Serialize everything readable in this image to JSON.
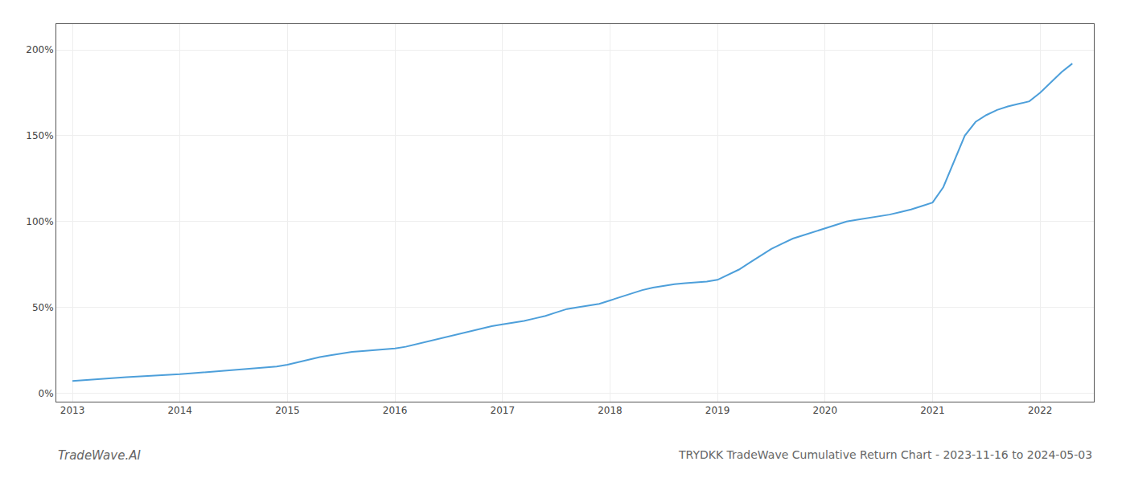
{
  "chart_data": {
    "type": "line",
    "title": "TRYDKK TradeWave Cumulative Return Chart - 2023-11-16 to 2024-05-03",
    "annotations": [
      "TradeWave.AI"
    ],
    "color": "#4d9fda",
    "grid": true,
    "xlim": [
      2012.85,
      2022.5
    ],
    "ylim": [
      -5,
      215
    ],
    "xticks": [
      2013,
      2014,
      2015,
      2016,
      2017,
      2018,
      2019,
      2020,
      2021,
      2022
    ],
    "yticks": [
      {
        "value": 0,
        "label": "0%"
      },
      {
        "value": 50,
        "label": "50%"
      },
      {
        "value": 100,
        "label": "100%"
      },
      {
        "value": 150,
        "label": "150%"
      },
      {
        "value": 200,
        "label": "200%"
      }
    ],
    "x": [
      2013.0,
      2013.1,
      2013.2,
      2013.3,
      2013.4,
      2013.5,
      2013.6,
      2013.7,
      2013.8,
      2013.9,
      2014.0,
      2014.1,
      2014.2,
      2014.3,
      2014.4,
      2014.5,
      2014.6,
      2014.7,
      2014.8,
      2014.9,
      2015.0,
      2015.1,
      2015.2,
      2015.3,
      2015.4,
      2015.5,
      2015.6,
      2015.7,
      2015.8,
      2015.9,
      2016.0,
      2016.1,
      2016.2,
      2016.3,
      2016.4,
      2016.5,
      2016.6,
      2016.7,
      2016.8,
      2016.9,
      2017.0,
      2017.1,
      2017.2,
      2017.3,
      2017.4,
      2017.5,
      2017.6,
      2017.7,
      2017.8,
      2017.9,
      2018.0,
      2018.1,
      2018.2,
      2018.3,
      2018.4,
      2018.5,
      2018.6,
      2018.7,
      2018.8,
      2018.9,
      2019.0,
      2019.1,
      2019.2,
      2019.3,
      2019.4,
      2019.5,
      2019.6,
      2019.7,
      2019.8,
      2019.9,
      2020.0,
      2020.1,
      2020.2,
      2020.3,
      2020.4,
      2020.5,
      2020.6,
      2020.7,
      2020.8,
      2020.9,
      2021.0,
      2021.1,
      2021.2,
      2021.3,
      2021.4,
      2021.5,
      2021.6,
      2021.7,
      2021.8,
      2021.9,
      2022.0,
      2022.1,
      2022.2,
      2022.3
    ],
    "values": [
      7,
      7.5,
      8,
      8.5,
      9,
      9.3,
      9.6,
      9.9,
      10.1,
      10.5,
      11,
      11.5,
      12,
      12.5,
      13,
      13.5,
      14,
      14.5,
      15,
      15.5,
      16.5,
      18,
      19.5,
      21,
      22,
      23,
      24,
      24.5,
      25,
      25.5,
      26,
      27,
      28.5,
      30,
      31.5,
      33,
      34.5,
      36,
      37.5,
      39,
      40,
      41,
      42,
      43.5,
      45,
      47,
      49,
      50,
      51,
      52,
      54,
      56,
      58,
      60,
      61.5,
      62.5,
      63.5,
      64,
      64.5,
      65,
      66,
      69,
      72,
      76,
      80,
      84,
      87,
      90,
      92,
      94,
      96,
      98,
      100,
      101,
      102,
      103,
      104,
      105.5,
      107,
      109,
      111,
      120,
      135,
      150,
      158,
      162,
      165,
      167,
      168.5,
      170,
      175,
      181,
      187,
      192
    ]
  }
}
